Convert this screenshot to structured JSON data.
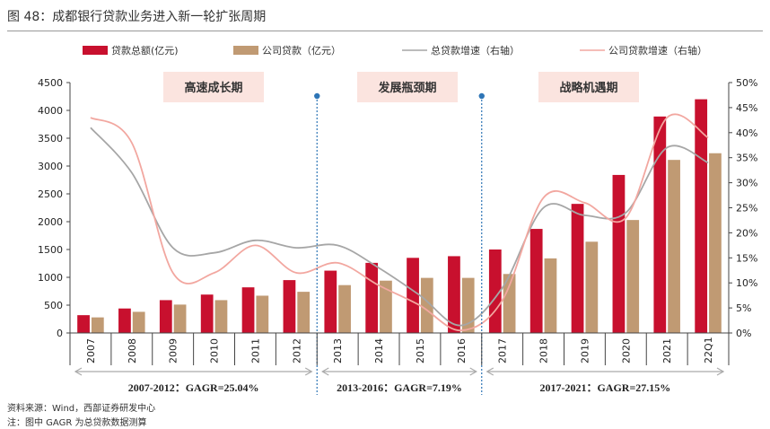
{
  "figure": {
    "title": "图 48：成都银行贷款业务进入新一轮扩张周期",
    "source": "资料来源：Wind，西部证券研发中心",
    "note": "注：图中 GAGR 为总贷款数据测算"
  },
  "colors": {
    "total_loans": "#c8102e",
    "corporate_loans": "#c09a73",
    "total_growth": "#a6a6a6",
    "corporate_growth": "#f2a7a0",
    "phase_box": "#fbe4df",
    "divider": "#2e75b6"
  },
  "chart_data": {
    "type": "bar",
    "categories": [
      "2007",
      "2008",
      "2009",
      "2010",
      "2011",
      "2012",
      "2013",
      "2014",
      "2015",
      "2016",
      "2017",
      "2018",
      "2019",
      "2020",
      "2021",
      "22Q1"
    ],
    "series": [
      {
        "name": "贷款总额(亿元)",
        "kind": "bar",
        "axis": "left",
        "values": [
          320,
          440,
          590,
          690,
          820,
          950,
          1120,
          1260,
          1350,
          1380,
          1500,
          1870,
          2320,
          2840,
          3890,
          4200
        ]
      },
      {
        "name": "公司贷款（亿元）",
        "kind": "bar",
        "axis": "left",
        "values": [
          280,
          380,
          510,
          590,
          670,
          740,
          860,
          940,
          990,
          990,
          1060,
          1340,
          1640,
          2030,
          3110,
          3230
        ]
      },
      {
        "name": "总贷款增速（右轴）",
        "kind": "line",
        "axis": "right",
        "values": [
          41,
          32,
          17,
          16,
          18.5,
          17,
          17.5,
          13,
          7.5,
          1.5,
          9,
          25,
          23.5,
          24,
          37,
          34
        ]
      },
      {
        "name": "公司贷款增速（右轴）",
        "kind": "line",
        "axis": "right",
        "values": [
          43,
          38,
          12,
          12,
          17.5,
          12,
          14,
          9.5,
          5.5,
          0.5,
          6.5,
          27,
          26,
          23,
          43,
          39
        ]
      }
    ],
    "left_axis": {
      "min": 0,
      "max": 4500,
      "ticks": [
        "0",
        "500",
        "1000",
        "1500",
        "2000",
        "2500",
        "3000",
        "3500",
        "4000",
        "4500"
      ]
    },
    "right_axis": {
      "min": 0,
      "max": 50,
      "ticks": [
        "0%",
        "5%",
        "10%",
        "15%",
        "20%",
        "25%",
        "30%",
        "35%",
        "40%",
        "45%",
        "50%"
      ]
    },
    "phases": [
      {
        "label": "高速成长期",
        "start": "2007",
        "end": "2012",
        "cagr": "2007-2012：GAGR=25.04%"
      },
      {
        "label": "发展瓶颈期",
        "start": "2013",
        "end": "2016",
        "cagr": "2013-2016：GAGR=7.19%"
      },
      {
        "label": "战略机遇期",
        "start": "2017",
        "end": "22Q1",
        "cagr": "2017-2021：GAGR=27.15%"
      }
    ],
    "legend_position": "top"
  }
}
